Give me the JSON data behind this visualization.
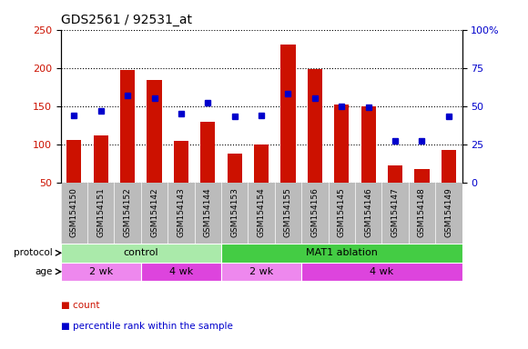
{
  "title": "GDS2561 / 92531_at",
  "samples": [
    "GSM154150",
    "GSM154151",
    "GSM154152",
    "GSM154142",
    "GSM154143",
    "GSM154144",
    "GSM154153",
    "GSM154154",
    "GSM154155",
    "GSM154156",
    "GSM154145",
    "GSM154146",
    "GSM154147",
    "GSM154148",
    "GSM154149"
  ],
  "count_values": [
    106,
    112,
    197,
    184,
    104,
    130,
    88,
    100,
    230,
    199,
    152,
    150,
    72,
    67,
    92
  ],
  "percentile_values": [
    44,
    47,
    57,
    55,
    45,
    52,
    43,
    44,
    58,
    55,
    50,
    49,
    27,
    27,
    43
  ],
  "ylim_left": [
    50,
    250
  ],
  "ylim_right": [
    0,
    100
  ],
  "yticks_left": [
    50,
    100,
    150,
    200,
    250
  ],
  "yticks_right": [
    0,
    25,
    50,
    75,
    100
  ],
  "ytick_labels_right": [
    "0",
    "25",
    "50",
    "75",
    "100%"
  ],
  "bar_color": "#cc1100",
  "dot_color": "#0000cc",
  "grid_color": "#000000",
  "background_color": "#ffffff",
  "xaxis_bg": "#bbbbbb",
  "protocol_colors": [
    "#aaeaaa",
    "#44cc44"
  ],
  "protocol_labels": [
    "control",
    "MAT1 ablation"
  ],
  "protocol_starts": [
    0,
    6
  ],
  "protocol_ends": [
    6,
    15
  ],
  "age_colors_2wk": "#ee88ee",
  "age_colors_4wk": "#dd44dd",
  "age_groups": [
    {
      "label": "2 wk",
      "start": 0,
      "end": 3,
      "color": "#ee88ee"
    },
    {
      "label": "4 wk",
      "start": 3,
      "end": 6,
      "color": "#dd44dd"
    },
    {
      "label": "2 wk",
      "start": 6,
      "end": 9,
      "color": "#ee88ee"
    },
    {
      "label": "4 wk",
      "start": 9,
      "end": 15,
      "color": "#dd44dd"
    }
  ],
  "tick_label_color_left": "#cc1100",
  "tick_label_color_right": "#0000cc",
  "legend_items": [
    {
      "label": "count",
      "color": "#cc1100"
    },
    {
      "label": "percentile rank within the sample",
      "color": "#0000cc"
    }
  ],
  "bar_bottom": 50
}
